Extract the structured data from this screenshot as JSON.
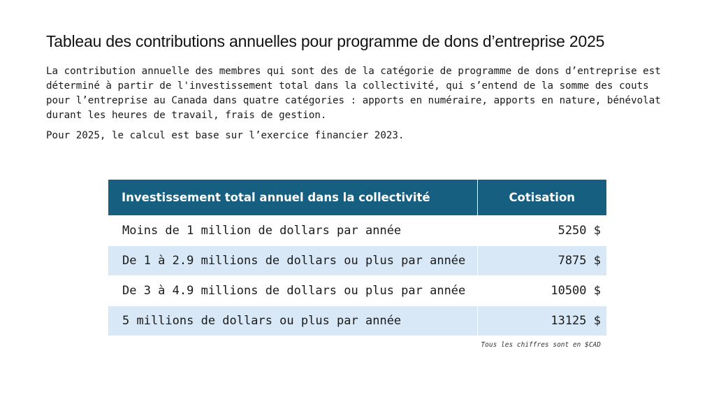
{
  "title": "Tableau des contributions annuelles pour programme de dons d’entreprise 2025",
  "intro": "La contribution annuelle des membres qui sont des de la catégorie de programme de dons d’entreprise est déterminé à partir de l'investissement total dans la collectivité, qui s’entend de la somme des couts pour l’entreprise au Canada dans quatre catégories : apports en numéraire, apports en nature, bénévolat durant les heures de travail, frais de gestion.",
  "note": "Pour 2025, le calcul est base sur l’exercice financier 2023.",
  "table": {
    "headers": [
      "Investissement total annuel dans la collectivité",
      "Cotisation"
    ],
    "rows": [
      {
        "label": "Moins de 1 million de dollars par année",
        "value": "5250 $"
      },
      {
        "label": "De 1 à 2.9 millions de dollars ou plus par année",
        "value": "7875 $"
      },
      {
        "label": "De 3 à 4.9 millions de dollars ou plus par année",
        "value": "10500 $"
      },
      {
        "label": "5 millions de dollars ou plus par année",
        "value": "13125 $"
      }
    ],
    "footnote": "Tous les chiffres sont en $CAD"
  },
  "colors": {
    "header_bg": "#175f80",
    "header_text": "#ffffff",
    "alt_row_bg": "#d9e8f6"
  }
}
